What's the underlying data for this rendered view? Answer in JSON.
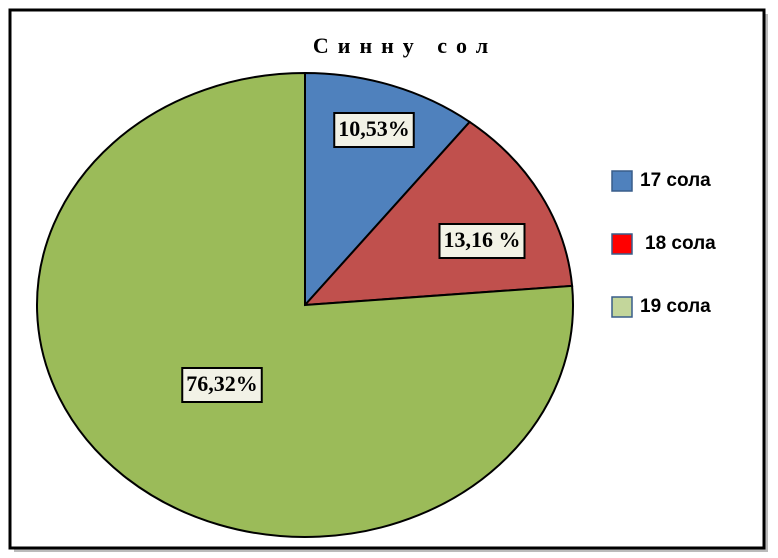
{
  "chart_data": {
    "type": "pie",
    "title": "Синну сол",
    "categories": [
      "17 сола",
      "18 сола",
      "19 сола"
    ],
    "values": [
      10.53,
      13.16,
      76.32
    ],
    "value_labels": [
      "10,53%",
      "13,16 %",
      "76,32%"
    ],
    "colors": [
      "#4f81bd",
      "#c0504d",
      "#9bbb59"
    ],
    "legend_colors": [
      "#4f81bd",
      "#ff0000",
      "#c3d69b"
    ]
  }
}
